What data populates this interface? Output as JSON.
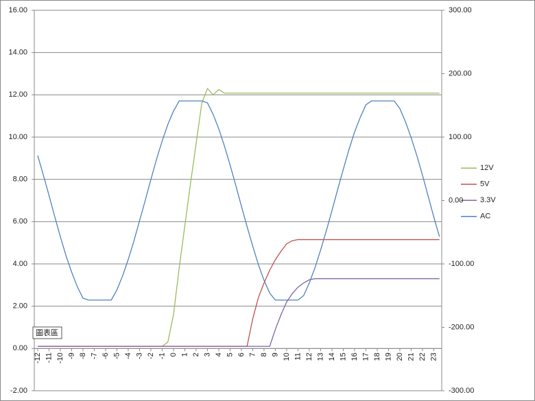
{
  "chart_data": {
    "type": "line",
    "x": [
      -12,
      -11.5,
      -11,
      -10.5,
      -10,
      -9.5,
      -9,
      -8.5,
      -8,
      -7.5,
      -7,
      -6.5,
      -6,
      -5.5,
      -5,
      -4.5,
      -4,
      -3.5,
      -3,
      -2.5,
      -2,
      -1.5,
      -1,
      -0.5,
      0,
      0.5,
      1,
      1.5,
      2,
      2.5,
      3,
      3.5,
      4,
      4.5,
      5,
      5.5,
      6,
      6.5,
      7,
      7.5,
      8,
      8.5,
      9,
      9.5,
      10,
      10.5,
      11,
      11.5,
      12,
      12.5,
      13,
      13.5,
      14,
      14.5,
      15,
      15.5,
      16,
      16.5,
      17,
      17.5,
      18,
      18.5,
      19,
      19.5,
      20,
      20.5,
      21,
      21.5,
      22,
      22.5,
      23,
      23.5
    ],
    "series": [
      {
        "name": "12V",
        "color": "#9bbb59",
        "values": [
          0.1,
          0.1,
          0.1,
          0.1,
          0.1,
          0.1,
          0.1,
          0.1,
          0.1,
          0.1,
          0.1,
          0.1,
          0.1,
          0.1,
          0.1,
          0.1,
          0.1,
          0.1,
          0.1,
          0.1,
          0.1,
          0.1,
          0.1,
          0.3,
          1.6,
          3.8,
          5.8,
          7.8,
          9.7,
          11.6,
          12.3,
          12.0,
          12.25,
          12.08,
          12.08,
          12.08,
          12.08,
          12.08,
          12.08,
          12.08,
          12.08,
          12.08,
          12.08,
          12.08,
          12.08,
          12.08,
          12.08,
          12.08,
          12.08,
          12.08,
          12.08,
          12.08,
          12.08,
          12.08,
          12.08,
          12.08,
          12.08,
          12.08,
          12.08,
          12.08,
          12.08,
          12.08,
          12.08,
          12.08,
          12.08,
          12.08,
          12.08,
          12.08,
          12.08,
          12.08,
          12.08,
          12.08
        ]
      },
      {
        "name": "5V",
        "color": "#c0504d",
        "values": [
          0.1,
          0.1,
          0.1,
          0.1,
          0.1,
          0.1,
          0.1,
          0.1,
          0.1,
          0.1,
          0.1,
          0.1,
          0.1,
          0.1,
          0.1,
          0.1,
          0.1,
          0.1,
          0.1,
          0.1,
          0.1,
          0.1,
          0.1,
          0.1,
          0.1,
          0.1,
          0.1,
          0.1,
          0.1,
          0.1,
          0.1,
          0.1,
          0.1,
          0.1,
          0.1,
          0.1,
          0.1,
          0.1,
          1.4,
          2.4,
          3.1,
          3.7,
          4.2,
          4.6,
          4.95,
          5.1,
          5.15,
          5.15,
          5.15,
          5.15,
          5.15,
          5.15,
          5.15,
          5.15,
          5.15,
          5.15,
          5.15,
          5.15,
          5.15,
          5.15,
          5.15,
          5.15,
          5.15,
          5.15,
          5.15,
          5.15,
          5.15,
          5.15,
          5.15,
          5.15,
          5.15,
          5.15
        ]
      },
      {
        "name": "3.3V",
        "color": "#8064a2",
        "values": [
          0.1,
          0.1,
          0.1,
          0.1,
          0.1,
          0.1,
          0.1,
          0.1,
          0.1,
          0.1,
          0.1,
          0.1,
          0.1,
          0.1,
          0.1,
          0.1,
          0.1,
          0.1,
          0.1,
          0.1,
          0.1,
          0.1,
          0.1,
          0.1,
          0.1,
          0.1,
          0.1,
          0.1,
          0.1,
          0.1,
          0.1,
          0.1,
          0.1,
          0.1,
          0.1,
          0.1,
          0.1,
          0.1,
          0.1,
          0.1,
          0.1,
          0.1,
          0.9,
          1.6,
          2.2,
          2.6,
          2.9,
          3.1,
          3.25,
          3.3,
          3.3,
          3.3,
          3.3,
          3.3,
          3.3,
          3.3,
          3.3,
          3.3,
          3.3,
          3.3,
          3.3,
          3.3,
          3.3,
          3.3,
          3.3,
          3.3,
          3.3,
          3.3,
          3.3,
          3.3,
          3.3,
          3.3
        ]
      },
      {
        "name": "AC",
        "color": "#4f81bd",
        "axis": "y2",
        "values": [
          71,
          40,
          8,
          -25,
          -57,
          -87,
          -113,
          -136,
          -154,
          -157,
          -157,
          -157,
          -157,
          -157,
          -141,
          -119,
          -93,
          -64,
          -32,
          0,
          33,
          65,
          94,
          120,
          141,
          157,
          157,
          157,
          157,
          157,
          154,
          136,
          113,
          86,
          56,
          24,
          -9,
          -41,
          -72,
          -101,
          -126,
          -146,
          -157,
          -157,
          -157,
          -157,
          -157,
          -150,
          -130,
          -106,
          -78,
          -48,
          -16,
          17,
          49,
          80,
          108,
          131,
          151,
          157,
          157,
          157,
          157,
          157,
          145,
          124,
          99,
          71,
          40,
          7,
          -26,
          -57
        ]
      }
    ],
    "xlim": [
      -12.3,
      23.7
    ],
    "xticks": [
      -12,
      -11,
      -10,
      -9,
      -8,
      -7,
      -6,
      -5,
      -4,
      -3,
      -2,
      -1,
      0,
      1,
      2,
      3,
      4,
      5,
      6,
      7,
      8,
      9,
      10,
      11,
      12,
      13,
      14,
      15,
      16,
      17,
      18,
      19,
      20,
      21,
      22,
      23
    ],
    "ylim": [
      -2,
      16
    ],
    "yticks": [
      {
        "value": -2,
        "label": "-2.00"
      },
      {
        "value": 0,
        "label": "0.00"
      },
      {
        "value": 2,
        "label": "2.00"
      },
      {
        "value": 4,
        "label": "4.00"
      },
      {
        "value": 6,
        "label": "6.00"
      },
      {
        "value": 8,
        "label": "8.00"
      },
      {
        "value": 10,
        "label": "10.00"
      },
      {
        "value": 12,
        "label": "12.00"
      },
      {
        "value": 14,
        "label": "14.00"
      },
      {
        "value": 16,
        "label": "16.00"
      }
    ],
    "y2lim": [
      -300,
      300
    ],
    "y2ticks": [
      {
        "value": -300,
        "label": "-300.00"
      },
      {
        "value": -200,
        "label": "-200.00"
      },
      {
        "value": -100,
        "label": "-100.00"
      },
      {
        "value": 0,
        "label": "0.00"
      },
      {
        "value": 100,
        "label": "100.00"
      },
      {
        "value": 200,
        "label": "200.00"
      },
      {
        "value": 300,
        "label": "300.00"
      }
    ],
    "grid": true,
    "legend": "right",
    "annotation": "圖表區"
  }
}
